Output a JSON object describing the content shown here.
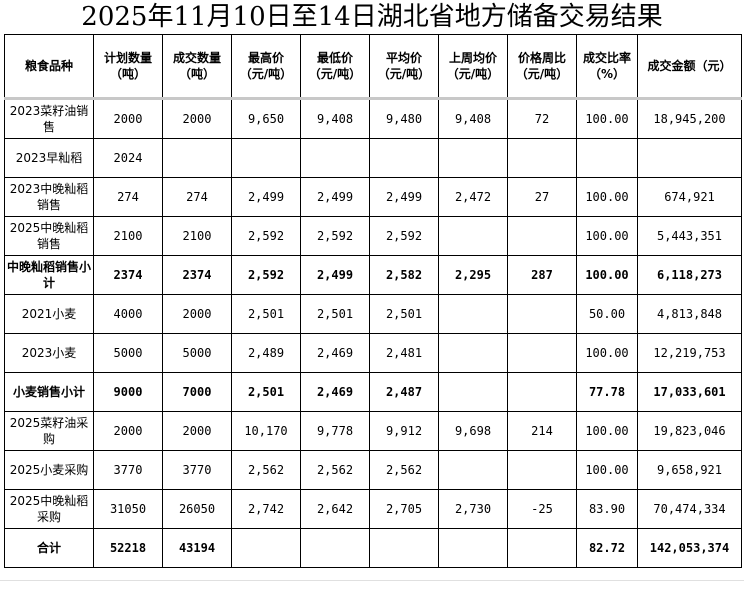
{
  "title": "2025年11月10日至14日湖北省地方储备交易结果",
  "headers": [
    "粮食品种",
    "计划数量（吨）",
    "成交数量（吨）",
    "最高价（元/吨）",
    "最低价（元/吨）",
    "平均价（元/吨）",
    "上周均价（元/吨）",
    "价格周比（元/吨）",
    "成交比率（%）",
    "成交金额（元）"
  ],
  "rows": [
    {
      "bold": false,
      "cells": [
        "2023菜籽油销售",
        "2000",
        "2000",
        "9,650",
        "9,408",
        "9,480",
        "9,408",
        "72",
        "100.00",
        "18,945,200"
      ]
    },
    {
      "bold": false,
      "cells": [
        "2023早籼稻",
        "2024",
        "",
        "",
        "",
        "",
        "",
        "",
        "",
        ""
      ]
    },
    {
      "bold": false,
      "cells": [
        "2023中晚籼稻销售",
        "274",
        "274",
        "2,499",
        "2,499",
        "2,499",
        "2,472",
        "27",
        "100.00",
        "674,921"
      ]
    },
    {
      "bold": false,
      "cells": [
        "2025中晚籼稻销售",
        "2100",
        "2100",
        "2,592",
        "2,592",
        "2,592",
        "",
        "",
        "100.00",
        "5,443,351"
      ]
    },
    {
      "bold": true,
      "cells": [
        "中晚籼稻销售小计",
        "2374",
        "2374",
        "2,592",
        "2,499",
        "2,582",
        "2,295",
        "287",
        "100.00",
        "6,118,273"
      ]
    },
    {
      "bold": false,
      "cells": [
        "2021小麦",
        "4000",
        "2000",
        "2,501",
        "2,501",
        "2,501",
        "",
        "",
        "50.00",
        "4,813,848"
      ]
    },
    {
      "bold": false,
      "cells": [
        "2023小麦",
        "5000",
        "5000",
        "2,489",
        "2,469",
        "2,481",
        "",
        "",
        "100.00",
        "12,219,753"
      ]
    },
    {
      "bold": true,
      "cells": [
        "小麦销售小计",
        "9000",
        "7000",
        "2,501",
        "2,469",
        "2,487",
        "",
        "",
        "77.78",
        "17,033,601"
      ]
    },
    {
      "bold": false,
      "cells": [
        "2025菜籽油采购",
        "2000",
        "2000",
        "10,170",
        "9,778",
        "9,912",
        "9,698",
        "214",
        "100.00",
        "19,823,046"
      ]
    },
    {
      "bold": false,
      "cells": [
        "2025小麦采购",
        "3770",
        "3770",
        "2,562",
        "2,562",
        "2,562",
        "",
        "",
        "100.00",
        "9,658,921"
      ]
    },
    {
      "bold": false,
      "cells": [
        "2025中晚籼稻采购",
        "31050",
        "26050",
        "2,742",
        "2,642",
        "2,705",
        "2,730",
        "-25",
        "83.90",
        "70,474,334"
      ]
    },
    {
      "bold": true,
      "cells": [
        "合计",
        "52218",
        "43194",
        "",
        "",
        "",
        "",
        "",
        "82.72",
        "142,053,374"
      ]
    }
  ]
}
